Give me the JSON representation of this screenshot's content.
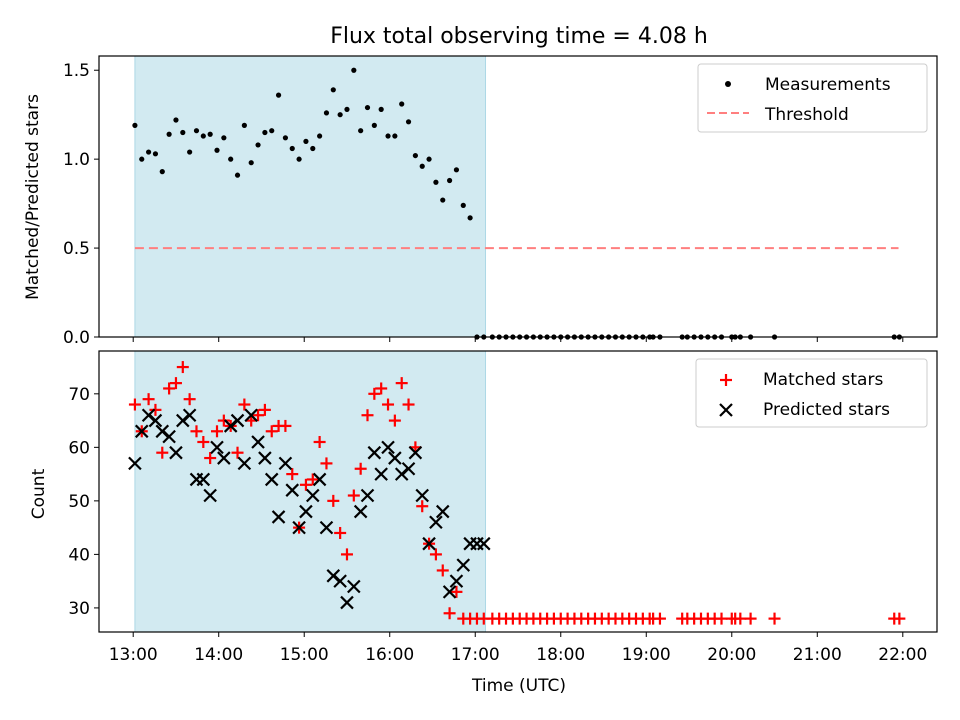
{
  "chart_data": {
    "title": "Flux total observing time = 4.08 h",
    "xlabel": "Time (UTC)",
    "x_ticks": [
      "13:00",
      "14:00",
      "15:00",
      "16:00",
      "17:00",
      "18:00",
      "19:00",
      "20:00",
      "21:00",
      "22:00"
    ],
    "xlim_hours": [
      12.6,
      22.4
    ],
    "shaded_region_hours": [
      13.02,
      17.12
    ],
    "shade_color": "#add8e6",
    "panels": [
      {
        "type": "scatter",
        "ylabel": "Matched/Predicted stars",
        "ylim": [
          0,
          1.58
        ],
        "yticks": [
          "0.0",
          "0.5",
          "1.0",
          "1.5"
        ],
        "ytick_values": [
          0,
          0.5,
          1.0,
          1.5
        ],
        "legend": "top-right",
        "series": [
          {
            "name": "Measurements",
            "marker": "dot",
            "color": "#000000",
            "x_hours": [
              13.02,
              13.1,
              13.18,
              13.26,
              13.34,
              13.42,
              13.5,
              13.58,
              13.66,
              13.74,
              13.82,
              13.9,
              13.98,
              14.06,
              14.14,
              14.22,
              14.3,
              14.38,
              14.46,
              14.54,
              14.62,
              14.7,
              14.78,
              14.86,
              14.94,
              15.02,
              15.1,
              15.18,
              15.26,
              15.34,
              15.42,
              15.5,
              15.58,
              15.66,
              15.74,
              15.82,
              15.9,
              15.98,
              16.06,
              16.14,
              16.22,
              16.3,
              16.38,
              16.46,
              16.54,
              16.62,
              16.7,
              16.78,
              16.86,
              16.94,
              17.02,
              17.1,
              17.2,
              17.28,
              17.36,
              17.44,
              17.52,
              17.6,
              17.68,
              17.76,
              17.84,
              17.92,
              18.0,
              18.08,
              18.16,
              18.24,
              18.32,
              18.4,
              18.48,
              18.56,
              18.64,
              18.72,
              18.8,
              18.88,
              18.96,
              19.04,
              19.08,
              19.16,
              19.42,
              19.48,
              19.56,
              19.64,
              19.72,
              19.8,
              19.88,
              20.0,
              20.04,
              20.1,
              20.22,
              20.5,
              21.9,
              21.96
            ],
            "y_values": [
              1.19,
              1.0,
              1.04,
              1.03,
              0.93,
              1.14,
              1.22,
              1.15,
              1.04,
              1.16,
              1.13,
              1.14,
              1.05,
              1.12,
              1.0,
              0.91,
              1.19,
              0.98,
              1.08,
              1.15,
              1.16,
              1.36,
              1.12,
              1.06,
              1.0,
              1.1,
              1.06,
              1.13,
              1.26,
              1.39,
              1.25,
              1.28,
              1.5,
              1.16,
              1.29,
              1.19,
              1.28,
              1.13,
              1.13,
              1.31,
              1.21,
              1.02,
              0.96,
              1.0,
              0.87,
              0.77,
              0.88,
              0.94,
              0.74,
              0.67,
              0,
              0,
              0,
              0,
              0,
              0,
              0,
              0,
              0,
              0,
              0,
              0,
              0,
              0,
              0,
              0,
              0,
              0,
              0,
              0,
              0,
              0,
              0,
              0,
              0,
              0,
              0,
              0,
              0,
              0,
              0,
              0,
              0,
              0,
              0,
              0,
              0,
              0,
              0,
              0,
              0,
              0
            ]
          },
          {
            "name": "Threshold",
            "type": "line",
            "style": "dashed",
            "color": "#ff7f7f",
            "x_hours": [
              13.02,
              21.95
            ],
            "y_values": [
              0.5,
              0.5
            ]
          }
        ]
      },
      {
        "type": "scatter",
        "ylabel": "Count",
        "ylim": [
          25.5,
          78
        ],
        "yticks": [
          "30",
          "40",
          "50",
          "60",
          "70"
        ],
        "ytick_values": [
          30,
          40,
          50,
          60,
          70
        ],
        "legend": "top-right",
        "series": [
          {
            "name": "Matched stars",
            "marker": "plus",
            "color": "#ff0000",
            "x_hours": [
              13.02,
              13.1,
              13.18,
              13.26,
              13.34,
              13.42,
              13.5,
              13.58,
              13.66,
              13.74,
              13.82,
              13.9,
              13.98,
              14.06,
              14.14,
              14.22,
              14.3,
              14.38,
              14.46,
              14.54,
              14.62,
              14.7,
              14.78,
              14.86,
              14.94,
              15.02,
              15.1,
              15.18,
              15.26,
              15.34,
              15.42,
              15.5,
              15.58,
              15.66,
              15.74,
              15.82,
              15.9,
              15.98,
              16.06,
              16.14,
              16.22,
              16.3,
              16.38,
              16.46,
              16.54,
              16.62,
              16.7,
              16.78,
              16.86,
              16.94,
              17.02,
              17.1,
              17.2,
              17.28,
              17.36,
              17.44,
              17.52,
              17.6,
              17.68,
              17.76,
              17.84,
              17.92,
              18.0,
              18.08,
              18.16,
              18.24,
              18.32,
              18.4,
              18.48,
              18.56,
              18.64,
              18.72,
              18.8,
              18.88,
              18.96,
              19.04,
              19.08,
              19.16,
              19.42,
              19.48,
              19.56,
              19.64,
              19.72,
              19.8,
              19.88,
              20.0,
              20.04,
              20.1,
              20.22,
              20.5,
              21.9,
              21.96
            ],
            "y_values": [
              68,
              63,
              69,
              67,
              59,
              71,
              72,
              75,
              69,
              63,
              61,
              58,
              63,
              65,
              64,
              59,
              68,
              65,
              66,
              67,
              63,
              64,
              64,
              55,
              45,
              53,
              54,
              61,
              57,
              50,
              44,
              40,
              51,
              56,
              66,
              70,
              71,
              68,
              65,
              72,
              68,
              60,
              49,
              42,
              40,
              37,
              29,
              33,
              28,
              28,
              28,
              28,
              28,
              28,
              28,
              28,
              28,
              28,
              28,
              28,
              28,
              28,
              28,
              28,
              28,
              28,
              28,
              28,
              28,
              28,
              28,
              28,
              28,
              28,
              28,
              28,
              28,
              28,
              28,
              28,
              28,
              28,
              28,
              28,
              28,
              28,
              28,
              28,
              28,
              28,
              28,
              28
            ]
          },
          {
            "name": "Predicted stars",
            "marker": "x",
            "color": "#000000",
            "x_hours": [
              13.02,
              13.1,
              13.18,
              13.26,
              13.34,
              13.42,
              13.5,
              13.58,
              13.66,
              13.74,
              13.82,
              13.9,
              13.98,
              14.06,
              14.14,
              14.22,
              14.3,
              14.38,
              14.46,
              14.54,
              14.62,
              14.7,
              14.78,
              14.86,
              14.94,
              15.02,
              15.1,
              15.18,
              15.26,
              15.34,
              15.42,
              15.5,
              15.58,
              15.66,
              15.74,
              15.82,
              15.9,
              15.98,
              16.06,
              16.14,
              16.22,
              16.3,
              16.38,
              16.46,
              16.54,
              16.62,
              16.7,
              16.78,
              16.86,
              16.94,
              17.02,
              17.1
            ],
            "y_values": [
              57,
              63,
              66,
              65,
              63,
              62,
              59,
              65,
              66,
              54,
              54,
              51,
              60,
              58,
              64,
              65,
              57,
              66,
              61,
              58,
              54,
              47,
              57,
              52,
              45,
              48,
              51,
              54,
              45,
              36,
              35,
              31,
              34,
              48,
              51,
              59,
              55,
              60,
              58,
              55,
              56,
              59,
              51,
              42,
              46,
              48,
              33,
              35,
              38,
              42,
              42,
              42
            ]
          }
        ]
      }
    ]
  }
}
